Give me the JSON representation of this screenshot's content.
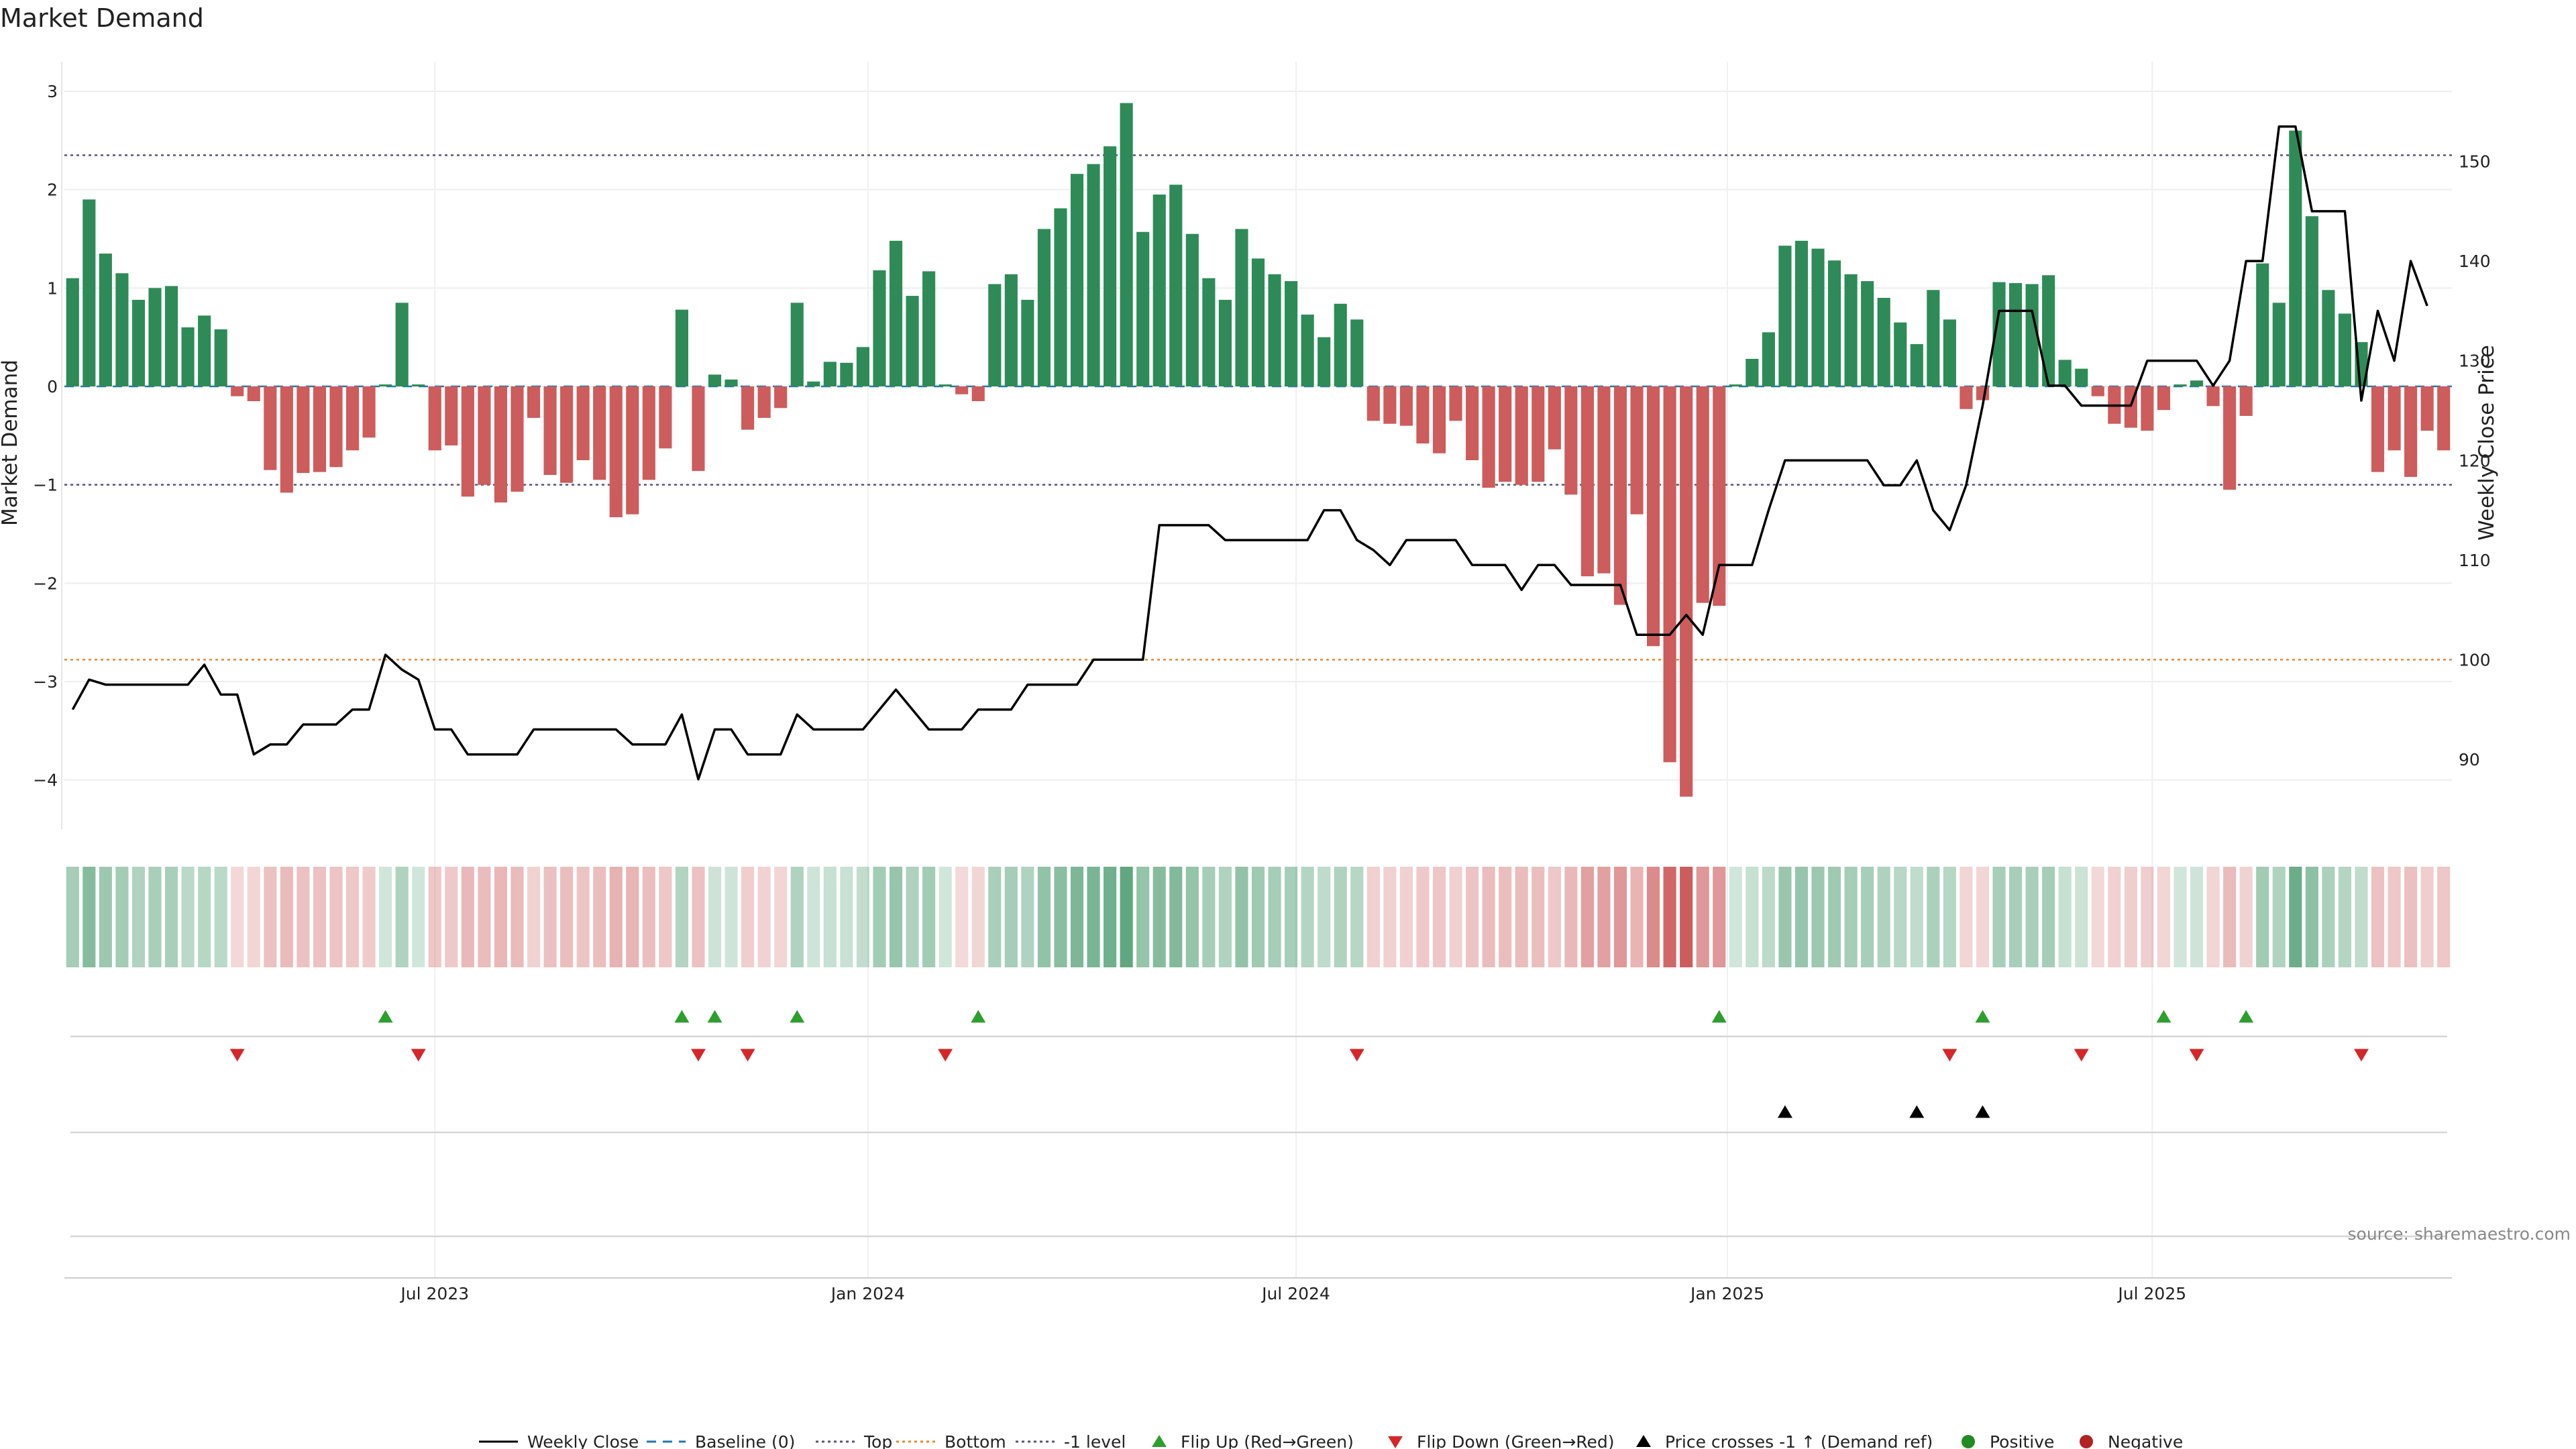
{
  "chart_data": {
    "type": "bar",
    "title": "Market Demand",
    "ylabel_left": "Market Demand",
    "ylabel_right": "Weekly Close Price",
    "ylim_left": [
      -4.5,
      3.3
    ],
    "ylim_right": [
      83,
      160
    ],
    "yticks_left": [
      {
        "value": 3,
        "label": "3"
      },
      {
        "value": 2,
        "label": "2"
      },
      {
        "value": 1,
        "label": "1"
      },
      {
        "value": 0,
        "label": "0"
      },
      {
        "value": -1,
        "label": "−1"
      },
      {
        "value": -2,
        "label": "−2"
      },
      {
        "value": -3,
        "label": "−3"
      },
      {
        "value": -4,
        "label": "−4"
      }
    ],
    "yticks_right": [
      {
        "value": 150,
        "label": "150"
      },
      {
        "value": 140,
        "label": "140"
      },
      {
        "value": 130,
        "label": "130"
      },
      {
        "value": 120,
        "label": "120"
      },
      {
        "value": 110,
        "label": "110"
      },
      {
        "value": 100,
        "label": "100"
      },
      {
        "value": 90,
        "label": "90"
      }
    ],
    "xticks": [
      {
        "index": 22,
        "label": "Jul 2023"
      },
      {
        "index": 48.3,
        "label": "Jan 2024"
      },
      {
        "index": 74.3,
        "label": "Jul 2024"
      },
      {
        "index": 100.5,
        "label": "Jan 2025"
      },
      {
        "index": 126.3,
        "label": "Jul 2025"
      }
    ],
    "reference_lines": {
      "baseline": 0,
      "top": 2.35,
      "minus_one": -1,
      "bottom_price": 100
    },
    "demand": [
      1.1,
      1.9,
      1.35,
      1.15,
      0.88,
      1.0,
      1.02,
      0.6,
      0.72,
      0.58,
      -0.1,
      -0.15,
      -0.85,
      -1.08,
      -0.88,
      -0.87,
      -0.82,
      -0.65,
      -0.52,
      0.02,
      0.85,
      0.02,
      -0.65,
      -0.6,
      -1.12,
      -1.0,
      -1.18,
      -1.07,
      -0.32,
      -0.9,
      -0.98,
      -0.75,
      -0.95,
      -1.33,
      -1.3,
      -0.95,
      -0.63,
      0.78,
      -0.86,
      0.12,
      0.07,
      -0.44,
      -0.32,
      -0.22,
      0.85,
      0.05,
      0.25,
      0.24,
      0.4,
      1.18,
      1.48,
      0.92,
      1.17,
      0.02,
      -0.08,
      -0.15,
      1.04,
      1.14,
      0.88,
      1.6,
      1.81,
      2.16,
      2.26,
      2.44,
      2.88,
      1.57,
      1.95,
      2.05,
      1.55,
      1.1,
      0.88,
      1.6,
      1.3,
      1.14,
      1.07,
      0.73,
      0.5,
      0.84,
      0.68,
      -0.35,
      -0.38,
      -0.4,
      -0.58,
      -0.68,
      -0.35,
      -0.75,
      -1.03,
      -0.97,
      -1.0,
      -0.97,
      -0.64,
      -1.1,
      -1.93,
      -1.9,
      -2.22,
      -1.3,
      -2.64,
      -3.82,
      -4.17,
      -2.2,
      -2.23,
      0.02,
      0.28,
      0.55,
      1.43,
      1.48,
      1.4,
      1.28,
      1.14,
      1.07,
      0.9,
      0.65,
      0.43,
      0.98,
      0.68,
      -0.23,
      -0.14,
      1.06,
      1.05,
      1.04,
      1.13,
      0.27,
      0.18,
      -0.1,
      -0.38,
      -0.42,
      -0.45,
      -0.24,
      0.02,
      0.06,
      -0.2,
      -1.05,
      -0.3,
      1.25,
      0.85,
      2.6,
      1.73,
      0.98,
      0.74,
      0.45,
      -0.87,
      -0.65,
      -0.92,
      -0.45,
      -0.65
    ],
    "price": [
      95.0,
      98.0,
      97.5,
      97.5,
      97.5,
      97.5,
      97.5,
      97.5,
      99.5,
      96.5,
      96.5,
      90.5,
      91.5,
      91.5,
      93.5,
      93.5,
      93.5,
      95.0,
      95.0,
      100.5,
      99.0,
      98.0,
      93.0,
      93.0,
      90.5,
      90.5,
      90.5,
      90.5,
      93.0,
      93.0,
      93.0,
      93.0,
      93.0,
      93.0,
      91.5,
      91.5,
      91.5,
      94.5,
      88.0,
      93.0,
      93.0,
      90.5,
      90.5,
      90.5,
      94.5,
      93.0,
      93.0,
      93.0,
      93.0,
      95.0,
      97.0,
      95.0,
      93.0,
      93.0,
      93.0,
      95.0,
      95.0,
      95.0,
      97.5,
      97.5,
      97.5,
      97.5,
      100.0,
      100.0,
      100.0,
      100.0,
      113.5,
      113.5,
      113.5,
      113.5,
      112.0,
      112.0,
      112.0,
      112.0,
      112.0,
      112.0,
      115.0,
      115.0,
      112.0,
      111.0,
      109.5,
      112.0,
      112.0,
      112.0,
      112.0,
      109.5,
      109.5,
      109.5,
      107.0,
      109.5,
      109.5,
      107.5,
      107.5,
      107.5,
      107.5,
      102.5,
      102.5,
      102.5,
      104.5,
      102.5,
      109.5,
      109.5,
      109.5,
      115.0,
      120.0,
      120.0,
      120.0,
      120.0,
      120.0,
      120.0,
      117.5,
      117.5,
      120.0,
      115.0,
      113.0,
      117.5,
      125.5,
      135.0,
      135.0,
      135.0,
      127.5,
      127.5,
      125.5,
      125.5,
      125.5,
      125.5,
      130.0,
      130.0,
      130.0,
      130.0,
      127.5,
      130.0,
      140.0,
      140.0,
      153.5,
      153.5,
      145.0,
      145.0,
      145.0,
      126.0,
      135.0,
      130.0,
      140.0,
      135.5
    ],
    "flip_up_indices": [
      19,
      37,
      39,
      44,
      55,
      100,
      116,
      127,
      132
    ],
    "flip_down_indices": [
      10,
      21,
      38,
      41,
      53,
      78,
      114,
      122,
      129,
      139
    ],
    "price_cross_indices": [
      104,
      112,
      116
    ],
    "legend": [
      {
        "key": "weekly",
        "label": "Weekly Close"
      },
      {
        "key": "baseline",
        "label": "Baseline (0)"
      },
      {
        "key": "top",
        "label": "Top"
      },
      {
        "key": "bottom",
        "label": "Bottom"
      },
      {
        "key": "level",
        "label": "-1 level"
      },
      {
        "key": "flipup",
        "label": "Flip Up (Red→Green)"
      },
      {
        "key": "flipdown",
        "label": "Flip Down (Green→Red)"
      },
      {
        "key": "cross",
        "label": "Price crosses -1 ↑ (Demand ref)"
      },
      {
        "key": "pos",
        "label": "Positive"
      },
      {
        "key": "neg",
        "label": "Negative"
      }
    ],
    "source": "source: sharemaestro.com"
  },
  "colors": {
    "positive": "#2e8b57",
    "negative": "#cd5c5c",
    "price_line": "#000000",
    "baseline": "#1f77b4",
    "top": "#555577",
    "bottom": "#e08a2c",
    "flip_up": "#2ca02c",
    "flip_down": "#d62728",
    "cross": "#000000",
    "positive_dot": "#228b22",
    "negative_dot": "#b22222"
  }
}
